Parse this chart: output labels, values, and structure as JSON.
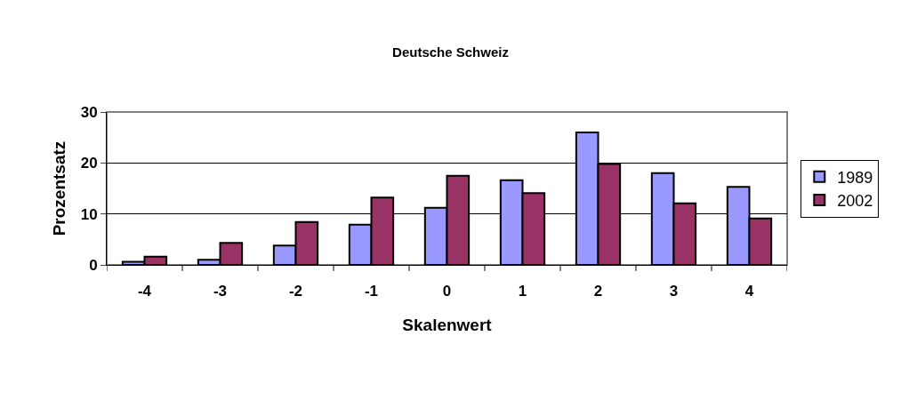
{
  "chart_data": {
    "type": "bar",
    "title": "Deutsche Schweiz",
    "xlabel": "Skalenwert",
    "ylabel": "Prozentsatz",
    "categories": [
      "-4",
      "-3",
      "-2",
      "-1",
      "0",
      "1",
      "2",
      "3",
      "4"
    ],
    "series": [
      {
        "name": "1989",
        "color": "#9999ff",
        "values": [
          0.6,
          1.0,
          3.8,
          7.9,
          11.2,
          16.6,
          26.0,
          18.0,
          15.3
        ]
      },
      {
        "name": "2002",
        "color": "#993366",
        "values": [
          1.6,
          4.3,
          8.4,
          13.2,
          17.5,
          14.1,
          19.8,
          12.1,
          9.1
        ]
      }
    ],
    "ylim": [
      0,
      30
    ],
    "yticks": [
      0,
      10,
      20,
      30
    ],
    "grid": "y",
    "legend": "right"
  }
}
